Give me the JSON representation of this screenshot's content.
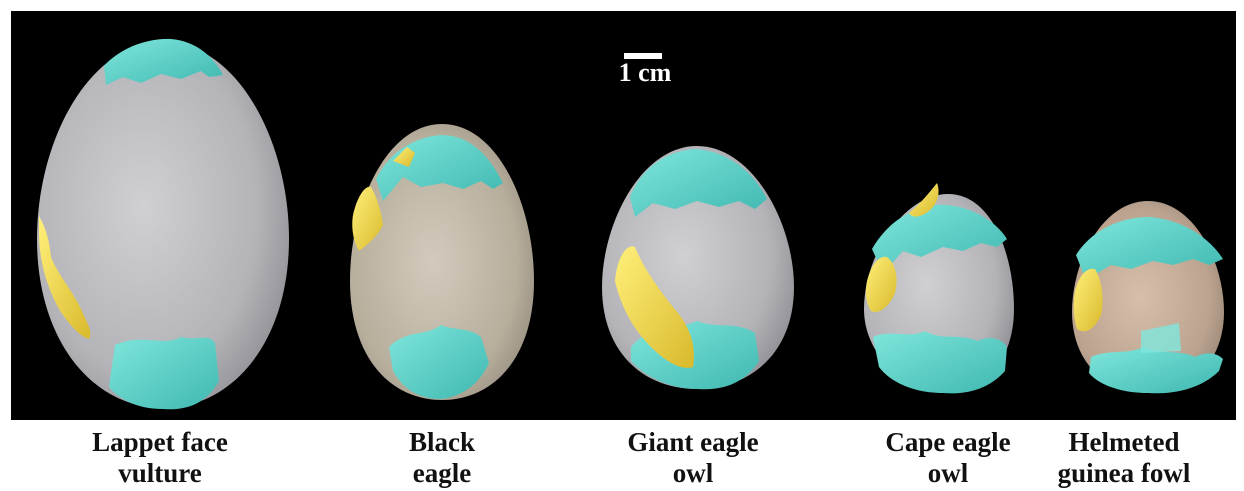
{
  "scale_bar": {
    "label": "1 cm"
  },
  "eggs": [
    {
      "line1": "Lappet face",
      "line2": "vulture"
    },
    {
      "line1": "Black",
      "line2": "eagle"
    },
    {
      "line1": "Giant eagle",
      "line2": "owl"
    },
    {
      "line1": "Cape eagle",
      "line2": "owl"
    },
    {
      "line1": "Helmeted",
      "line2": "guinea fowl"
    }
  ],
  "colors": {
    "background": "#000000",
    "shell": "#b8b8bc",
    "cap": "#5fd6cc",
    "patch": "#f2d545"
  }
}
